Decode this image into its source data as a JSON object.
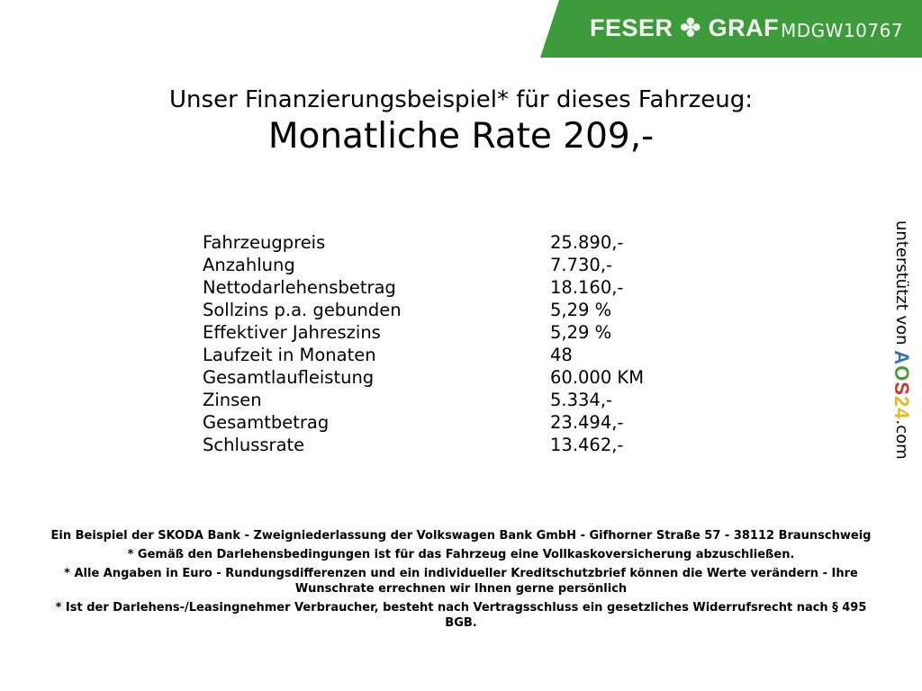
{
  "header": {
    "logo": "FESER ✤ GRAF",
    "vehicle_code": "MDGW10767",
    "brand_color": "#3e9b3b"
  },
  "title": "Unser Finanzierungsbeispiel* für dieses Fahrzeug:",
  "rate": "Monatliche Rate 209,-",
  "rows": [
    {
      "label": "Fahrzeugpreis",
      "value": "25.890,-"
    },
    {
      "label": "Anzahlung",
      "value": "7.730,-"
    },
    {
      "label": "Nettodarlehensbetrag",
      "value": "18.160,-"
    },
    {
      "label": "Sollzins p.a. gebunden",
      "value": "5,29 %"
    },
    {
      "label": "Effektiver Jahreszins",
      "value": "5,29 %"
    },
    {
      "label": "Laufzeit in Monaten",
      "value": "48"
    },
    {
      "label": "Gesamtlaufleistung",
      "value": "60.000 KM"
    },
    {
      "label": "Zinsen",
      "value": "5.334,-"
    },
    {
      "label": "Gesamtbetrag",
      "value": "23.494,-"
    },
    {
      "label": "Schlussrate",
      "value": "13.462,-"
    }
  ],
  "side": {
    "text": "unterstützt von",
    "logo": "AOS24",
    "suffix": ".com"
  },
  "footer": [
    "Ein Beispiel der SKODA Bank - Zweigniederlassung der Volkswagen Bank GmbH - Gifhorner Straße 57 - 38112 Braunschweig",
    "* Gemäß den Darlehensbedingungen ist für das Fahrzeug eine Vollkaskoversicherung abzuschließen.",
    "* Alle Angaben in Euro - Rundungsdifferenzen und ein individueller Kreditschutzbrief können die Werte verändern - Ihre Wunschrate errechnen wir Ihnen gerne persönlich",
    "* Ist der Darlehens-/Leasingnehmer Verbraucher, besteht nach Vertragsschluss ein gesetzliches Widerrufsrecht nach § 495 BGB."
  ]
}
